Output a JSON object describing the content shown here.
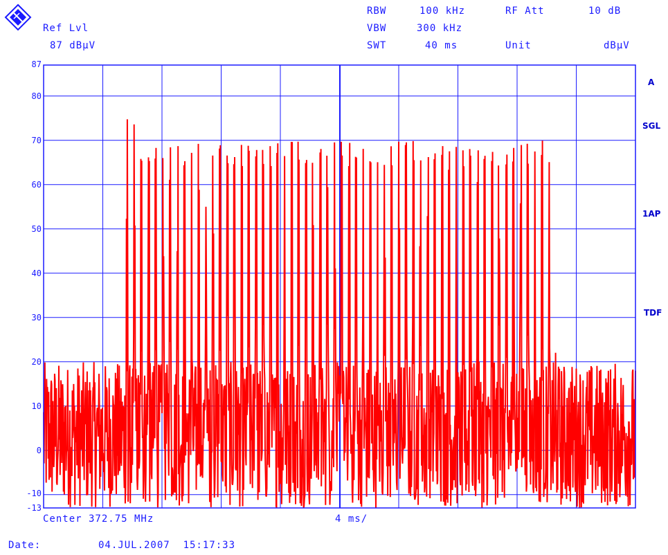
{
  "header": {
    "ref_label": "Ref Lvl",
    "ref_value": "87 dBµV",
    "rbw_label": "RBW",
    "rbw_value": "100 kHz",
    "vbw_label": "VBW",
    "vbw_value": "300 kHz",
    "swt_label": "SWT",
    "swt_value": "40 ms",
    "rf_att_label": "RF Att",
    "rf_att_value": "10 dB",
    "unit_label": "Unit",
    "unit_value": "dBµV"
  },
  "side_labels": {
    "trace": "A",
    "sgl": "SGL",
    "ap": "1AP",
    "tdf": "TDF"
  },
  "footer": {
    "center": "Center 372.75 MHz",
    "span": "4 ms/",
    "date_label": "Date:",
    "date_value": "04.JUL.2007  15:17:33"
  },
  "colors": {
    "trace": "#ff0000",
    "grid": "#1a1aff",
    "text": "#1a1aff"
  },
  "icons": {
    "logo": "rohde-schwarz-logo-icon"
  },
  "chart_data": {
    "type": "line",
    "title": "",
    "xlabel": "Center 372.75 MHz",
    "ylabel": "",
    "x_units": "time, 4 ms/div, 10 divisions (0-40 ms)",
    "xlim": [
      0,
      40
    ],
    "ylim": [
      -13,
      87
    ],
    "y_ticks": [
      87,
      80,
      70,
      60,
      50,
      40,
      30,
      20,
      10,
      0,
      -10,
      -13
    ],
    "grid": true,
    "series": [
      {
        "noise_floor_range": [
          -13,
          20
        ],
        "burst_start_ms": 5.6,
        "burst_end_ms": 34.6,
        "first_peak": 76,
        "pulse_peak_typical": 70,
        "pulse_count": 60
      }
    ]
  }
}
